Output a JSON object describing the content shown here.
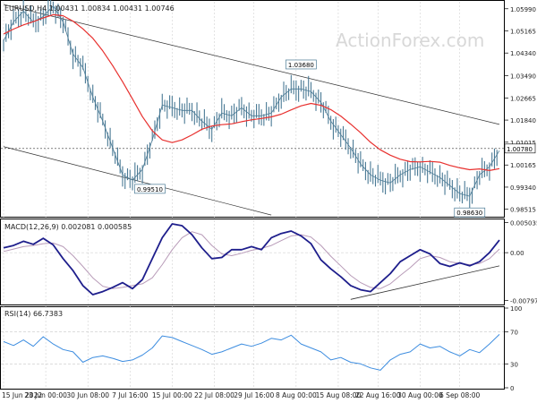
{
  "chart_data": [
    {
      "type": "line",
      "panel": "price",
      "title": "EURUSD,H4  1.00431 1.00834 1.00431 1.00746",
      "watermark": "ActionForex.com",
      "ylim": [
        0.9827,
        1.0625
      ],
      "y_ticks": [
        "1.05990",
        "1.05165",
        "1.04340",
        "1.03490",
        "1.02665",
        "1.01840",
        "1.01015",
        "1.00165",
        "0.99340",
        "0.98515"
      ],
      "y_tick_values": [
        1.0599,
        1.05165,
        1.0434,
        1.0349,
        1.02665,
        1.0184,
        1.01015,
        1.00165,
        0.9934,
        0.98515
      ],
      "current_price_label": "1.00780",
      "current_price": 1.0078,
      "annotations": [
        {
          "text": "1.03680",
          "x": "5 Aug",
          "y": 1.0368
        },
        {
          "text": "0.99510",
          "x": "14 Jul",
          "y": 0.9951
        },
        {
          "text": "0.98630",
          "x": "6 Sep",
          "y": 0.9863
        }
      ],
      "series": [
        {
          "name": "",
          "color": "#e8312f",
          "kind": "moving average",
          "x": [
            0,
            4,
            8,
            12,
            16,
            20,
            24,
            28,
            32,
            36,
            40,
            44,
            48,
            52,
            56,
            60,
            64,
            68,
            72,
            76,
            80,
            84,
            88,
            92,
            96,
            100,
            104,
            108,
            112,
            116,
            120,
            124,
            128,
            132,
            136,
            140,
            144,
            148,
            152,
            156,
            160,
            164,
            168,
            172,
            176,
            180,
            184,
            188,
            192,
            196,
            200
          ],
          "values": [
            1.0505,
            1.0523,
            1.0539,
            1.0551,
            1.0565,
            1.0577,
            1.0573,
            1.0553,
            1.0524,
            1.0489,
            1.0442,
            1.0387,
            1.0327,
            1.0263,
            1.0197,
            1.0144,
            1.011,
            1.01,
            1.011,
            1.0129,
            1.015,
            1.0162,
            1.0167,
            1.017,
            1.0178,
            1.0185,
            1.019,
            1.0196,
            1.0206,
            1.0222,
            1.0237,
            1.0246,
            1.0239,
            1.0223,
            1.0199,
            1.0169,
            1.0137,
            1.0101,
            1.0073,
            1.0053,
            1.0038,
            1.0029,
            1.0028,
            1.003,
            1.0027,
            1.0015,
            1.0006,
            0.9999,
            1.0002,
            0.9996,
            1.0003
          ]
        },
        {
          "name": "",
          "color": "#4a7a95",
          "kind": "price bars",
          "x": [
            0,
            4,
            8,
            12,
            16,
            20,
            24,
            28,
            32,
            36,
            40,
            44,
            48,
            52,
            56,
            60,
            64,
            68,
            72,
            76,
            80,
            84,
            88,
            92,
            96,
            100,
            104,
            108,
            112,
            116,
            120,
            124,
            128,
            132,
            136,
            140,
            144,
            148,
            152,
            156,
            160,
            164,
            168,
            172,
            176,
            180,
            184,
            188,
            192,
            196,
            200
          ],
          "values": [
            1.048,
            1.055,
            1.059,
            1.055,
            1.057,
            1.061,
            1.055,
            1.043,
            1.038,
            1.027,
            1.018,
            1.008,
            0.998,
            0.996,
            1.0,
            1.011,
            1.024,
            1.023,
            1.022,
            1.022,
            1.018,
            1.015,
            1.021,
            1.02,
            1.023,
            1.02,
            1.02,
            1.021,
            1.027,
            1.03,
            1.03,
            1.029,
            1.025,
            1.018,
            1.013,
            1.008,
            1.002,
            0.998,
            0.996,
            0.995,
            0.998,
            1.0,
            1.001,
            0.999,
            0.997,
            0.994,
            0.991,
            0.99,
            0.998,
            1.001,
            1.007
          ]
        }
      ],
      "channel": {
        "color": "#333333"
      }
    },
    {
      "type": "line",
      "panel": "macd",
      "title": "MACD(12,26,9) 0.002081 0.000585",
      "ylim": [
        -0.0085,
        0.0054
      ],
      "y_ticks": [
        "0.005035",
        "0.00",
        "-0.007973"
      ],
      "y_tick_values": [
        0.005035,
        0.0,
        -0.007973
      ],
      "series": [
        {
          "name": "",
          "color": "#1e1e8c",
          "values": [
            0.0008,
            0.0012,
            0.0019,
            0.0014,
            0.0024,
            0.0013,
            -0.001,
            -0.003,
            -0.0055,
            -0.007,
            -0.0065,
            -0.0058,
            -0.005,
            -0.006,
            -0.0045,
            -0.001,
            0.0025,
            0.0048,
            0.0045,
            0.003,
            0.0008,
            -0.001,
            -0.0008,
            0.0005,
            0.0005,
            0.001,
            0.0005,
            0.0025,
            0.0032,
            0.0036,
            0.0028,
            0.0015,
            -0.0012,
            -0.0027,
            -0.004,
            -0.0055,
            -0.0062,
            -0.0065,
            -0.005,
            -0.0035,
            -0.0015,
            -0.0005,
            0.0005,
            -0.0002,
            -0.0018,
            -0.0023,
            -0.0017,
            -0.0022,
            -0.0015,
            0.0,
            0.0021
          ]
        },
        {
          "name": "",
          "color": "#b89bb8",
          "values": [
            0.0002,
            0.0006,
            0.001,
            0.0012,
            0.0015,
            0.0016,
            0.001,
            -0.0005,
            -0.0023,
            -0.0042,
            -0.0056,
            -0.006,
            -0.0058,
            -0.0055,
            -0.0052,
            -0.0042,
            -0.002,
            0.0005,
            0.0025,
            0.0035,
            0.003,
            0.0012,
            -0.0002,
            -0.0005,
            -0.0001,
            0.0004,
            0.0007,
            0.0012,
            0.002,
            0.0028,
            0.003,
            0.0026,
            0.0012,
            -0.0006,
            -0.0022,
            -0.0038,
            -0.005,
            -0.0058,
            -0.006,
            -0.0052,
            -0.0038,
            -0.0025,
            -0.001,
            -0.0005,
            -0.0008,
            -0.0015,
            -0.0018,
            -0.002,
            -0.0018,
            -0.001,
            0.0006
          ]
        }
      ],
      "trendline": {
        "from": [
          140,
          -0.0078
        ],
        "to": [
          200,
          -0.0022
        ],
        "color": "#333333"
      }
    },
    {
      "type": "line",
      "panel": "rsi",
      "title": "RSI(14) 66.7383",
      "ylim": [
        0,
        100
      ],
      "y_ticks": [
        "100",
        "70",
        "30",
        "0"
      ],
      "y_tick_values": [
        100,
        70,
        30,
        0
      ],
      "levels": [
        70,
        30
      ],
      "series": [
        {
          "name": "",
          "color": "#3d8de0",
          "values": [
            58,
            53,
            60,
            52,
            64,
            55,
            48,
            45,
            32,
            38,
            40,
            37,
            33,
            35,
            41,
            50,
            65,
            63,
            58,
            53,
            48,
            42,
            45,
            50,
            55,
            52,
            56,
            62,
            60,
            66,
            55,
            50,
            45,
            35,
            38,
            32,
            30,
            25,
            22,
            35,
            42,
            45,
            55,
            50,
            52,
            45,
            40,
            48,
            44,
            55,
            67
          ]
        }
      ]
    }
  ],
  "x_axis": {
    "labels": [
      "15 Jun 2022",
      "23 Jun 00:00",
      "30 Jun 08:00",
      "7 Jul 16:00",
      "15 Jul 00:00",
      "22 Jul 08:00",
      "29 Jul 16:00",
      "8 Aug 00:00",
      "15 Aug 08:00",
      "22 Aug 16:00",
      "30 Aug 00:00",
      "6 Sep 08:00"
    ],
    "label_x": [
      0,
      17,
      34,
      51,
      68,
      85,
      101,
      118,
      135,
      151,
      168,
      184
    ]
  },
  "colors": {
    "grid": "#c8c8c8",
    "axis_text": "#222222",
    "frame": "#000000",
    "watermark": "#d8d8d8"
  }
}
